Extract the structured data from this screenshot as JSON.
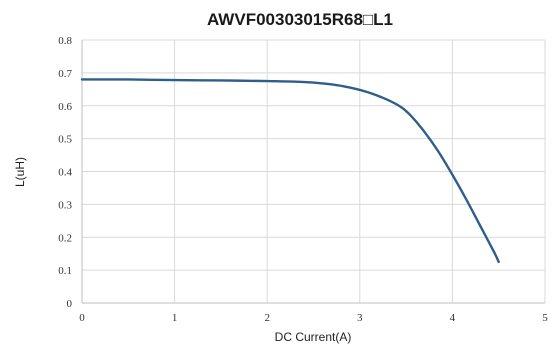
{
  "chart_data": {
    "type": "line",
    "title": "AWVF00303015R68□L1",
    "xlabel": "DC Current(A)",
    "ylabel": "L(uH)",
    "xlim": [
      0,
      5
    ],
    "ylim": [
      0,
      0.8
    ],
    "x_ticks": [
      "0",
      "1",
      "2",
      "3",
      "4",
      "5"
    ],
    "y_ticks": [
      "0",
      "0.1",
      "0.2",
      "0.3",
      "0.4",
      "0.5",
      "0.6",
      "0.7",
      "0.8"
    ],
    "grid": true,
    "series": [
      {
        "color": "#2f5e8c",
        "x": [
          0,
          0.5,
          1.0,
          1.5,
          2.0,
          2.4,
          2.7,
          2.9,
          3.1,
          3.3,
          3.45,
          3.55,
          3.7,
          3.85,
          4.0,
          4.15,
          4.3,
          4.45,
          4.5
        ],
        "y": [
          0.68,
          0.68,
          0.678,
          0.677,
          0.675,
          0.672,
          0.665,
          0.655,
          0.64,
          0.618,
          0.595,
          0.57,
          0.52,
          0.46,
          0.39,
          0.315,
          0.235,
          0.155,
          0.125
        ]
      }
    ]
  }
}
